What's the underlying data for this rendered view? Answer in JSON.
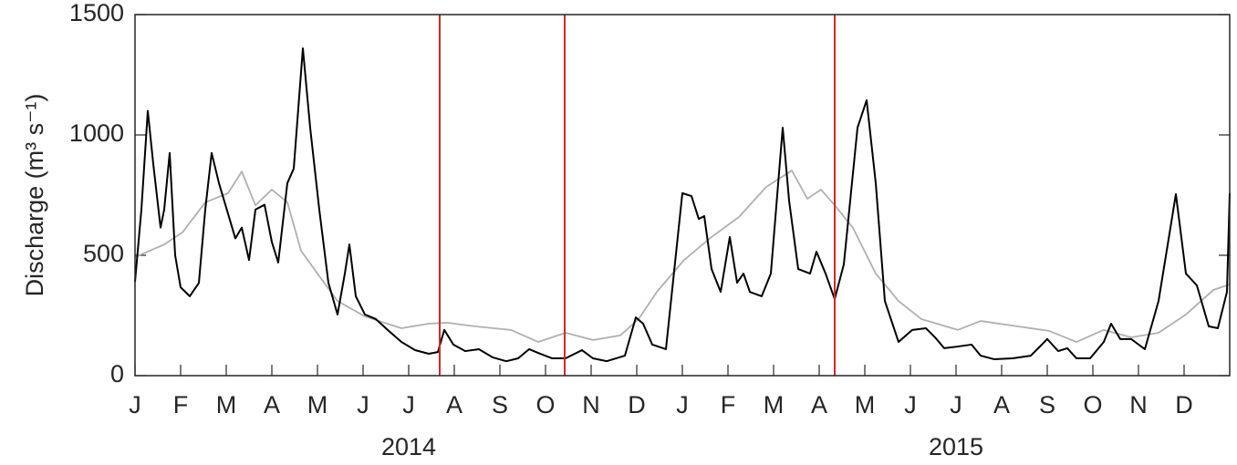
{
  "chart_data": {
    "type": "line",
    "ylabel": "Discharge (m³ s⁻¹)",
    "xlim": [
      0,
      24
    ],
    "ylim": [
      0,
      1500
    ],
    "yticks": [
      0,
      500,
      1000,
      1500
    ],
    "xticks": [
      {
        "value": 0,
        "label": "J"
      },
      {
        "value": 1,
        "label": "F"
      },
      {
        "value": 2,
        "label": "M"
      },
      {
        "value": 3,
        "label": "A"
      },
      {
        "value": 4,
        "label": "M"
      },
      {
        "value": 5,
        "label": "J"
      },
      {
        "value": 6,
        "label": "J"
      },
      {
        "value": 7,
        "label": "A"
      },
      {
        "value": 8,
        "label": "S"
      },
      {
        "value": 9,
        "label": "O"
      },
      {
        "value": 10,
        "label": "N"
      },
      {
        "value": 11,
        "label": "D"
      },
      {
        "value": 12,
        "label": "J"
      },
      {
        "value": 13,
        "label": "F"
      },
      {
        "value": 14,
        "label": "M"
      },
      {
        "value": 15,
        "label": "A"
      },
      {
        "value": 16,
        "label": "M"
      },
      {
        "value": 17,
        "label": "J"
      },
      {
        "value": 18,
        "label": "J"
      },
      {
        "value": 19,
        "label": "A"
      },
      {
        "value": 20,
        "label": "S"
      },
      {
        "value": 21,
        "label": "O"
      },
      {
        "value": 22,
        "label": "N"
      },
      {
        "value": 23,
        "label": "D"
      }
    ],
    "x_group_labels": [
      "2014",
      "2015"
    ],
    "vlines": {
      "color": "#d62728",
      "values": [
        6.68,
        9.42,
        15.34
      ]
    },
    "series": [
      {
        "color": "#b0b0b0",
        "x": [
          0,
          0.64,
          1.04,
          1.54,
          2.04,
          2.34,
          2.64,
          3.0,
          3.34,
          3.64,
          4.0,
          4.44,
          5.04,
          5.84,
          6.44,
          6.84,
          7.44,
          8.24,
          8.84,
          9.44,
          10.04,
          10.64,
          11.04,
          11.44,
          12.04,
          12.64,
          13.24,
          13.84,
          14.4,
          14.74,
          15.04,
          15.34,
          15.74,
          16.24,
          16.74,
          17.24,
          18.04,
          18.54,
          19.24,
          20.04,
          20.64,
          21.24,
          21.84,
          22.44,
          23.04,
          23.64,
          24.0
        ],
        "values": [
          492,
          545,
          595,
          720,
          758,
          848,
          708,
          773,
          720,
          519,
          424,
          310,
          246,
          197,
          216,
          220,
          205,
          190,
          140,
          178,
          148,
          167,
          235,
          348,
          481,
          576,
          659,
          784,
          852,
          735,
          773,
          708,
          614,
          424,
          310,
          235,
          190,
          227,
          208,
          186,
          140,
          190,
          159,
          178,
          254,
          356,
          379
        ]
      },
      {
        "color": "#000000",
        "x": [
          0,
          0.14,
          0.28,
          0.4,
          0.56,
          0.64,
          0.76,
          0.88,
          1.0,
          1.2,
          1.4,
          1.54,
          1.68,
          1.84,
          2.2,
          2.34,
          2.5,
          2.64,
          2.84,
          3.0,
          3.14,
          3.34,
          3.48,
          3.68,
          3.84,
          4.04,
          4.24,
          4.44,
          4.6,
          4.7,
          4.84,
          5.04,
          5.28,
          5.54,
          5.84,
          6.14,
          6.44,
          6.64,
          6.78,
          6.98,
          7.24,
          7.54,
          7.84,
          8.14,
          8.4,
          8.64,
          8.88,
          9.14,
          9.44,
          9.64,
          9.8,
          10.04,
          10.34,
          10.74,
          10.98,
          11.14,
          11.34,
          11.64,
          12.0,
          12.2,
          12.36,
          12.48,
          12.64,
          12.84,
          13.04,
          13.2,
          13.34,
          13.48,
          13.74,
          13.94,
          14.2,
          14.34,
          14.54,
          14.8,
          14.94,
          15.14,
          15.34,
          15.54,
          15.84,
          16.04,
          16.24,
          16.44,
          16.74,
          17.04,
          17.34,
          17.54,
          17.74,
          18.04,
          18.34,
          18.54,
          18.84,
          19.24,
          19.64,
          20.0,
          20.24,
          20.44,
          20.64,
          20.94,
          21.24,
          21.4,
          21.6,
          21.84,
          22.14,
          22.44,
          22.82,
          23.04,
          23.28,
          23.54,
          23.74,
          23.94,
          24
        ],
        "values": [
          390,
          690,
          1100,
          880,
          615,
          690,
          925,
          500,
          367,
          330,
          385,
          690,
          925,
          800,
          570,
          615,
          480,
          690,
          710,
          555,
          470,
          800,
          860,
          1360,
          1030,
          690,
          386,
          254,
          424,
          545,
          330,
          254,
          235,
          190,
          140,
          106,
          91,
          98,
          190,
          129,
          102,
          110,
          76,
          60,
          72,
          110,
          91,
          72,
          72,
          91,
          106,
          72,
          60,
          83,
          242,
          216,
          129,
          110,
          758,
          746,
          651,
          663,
          443,
          348,
          576,
          386,
          424,
          348,
          330,
          424,
          1030,
          727,
          443,
          424,
          515,
          424,
          318,
          462,
          1030,
          1144,
          800,
          310,
          140,
          190,
          197,
          159,
          114,
          121,
          129,
          83,
          68,
          72,
          83,
          152,
          102,
          114,
          72,
          72,
          140,
          216,
          152,
          152,
          110,
          310,
          754,
          424,
          375,
          205,
          197,
          348,
          758
        ]
      }
    ]
  }
}
